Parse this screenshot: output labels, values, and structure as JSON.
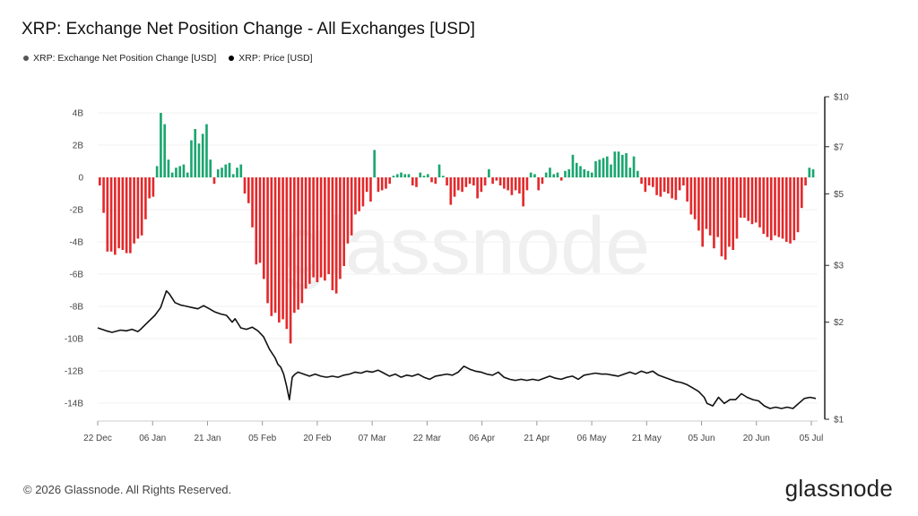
{
  "title": "XRP: Exchange Net Position Change - All Exchanges [USD]",
  "legend": [
    {
      "label": "XRP: Exchange Net Position Change [USD]",
      "color": "#555555"
    },
    {
      "label": "XRP: Price [USD]",
      "color": "#000000"
    }
  ],
  "footer": {
    "copyright": "© 2026 Glassnode. All Rights Reserved.",
    "logo": "glassnode"
  },
  "watermark": "glassnode",
  "colors": {
    "positive": "#1aa66f",
    "negative": "#e3292b",
    "price": "#111111",
    "axis": "#222222"
  },
  "chart_data": {
    "type": "bar",
    "title": "XRP: Exchange Net Position Change - All Exchanges [USD]",
    "x_ticks": [
      "22 Dec",
      "06 Jan",
      "21 Jan",
      "05 Feb",
      "20 Feb",
      "07 Mar",
      "22 Mar",
      "06 Apr",
      "21 Apr",
      "06 May",
      "21 May",
      "05 Jun",
      "20 Jun",
      "05 Jul"
    ],
    "left_axis": {
      "ticks": [
        "4B",
        "2B",
        "0",
        "-2B",
        "-4B",
        "-6B",
        "-8B",
        "-10B",
        "-12B",
        "-14B"
      ],
      "ylim": [
        -14.5,
        4.5
      ]
    },
    "right_axis": {
      "ticks": [
        "$10",
        "$7",
        "$5",
        "$3",
        "$2",
        "$1"
      ],
      "tick_values": [
        10,
        7,
        5,
        3,
        2,
        1
      ],
      "scale": "log",
      "ylim": [
        1,
        10
      ]
    },
    "x_range_days": [
      0,
      196
    ],
    "series": [
      {
        "name": "XRP: Exchange Net Position Change [USD]",
        "unit": "billions USD",
        "values": [
          -0.5,
          -2.2,
          -4.6,
          -4.6,
          -4.8,
          -4.4,
          -4.5,
          -4.7,
          -4.7,
          -4.1,
          -3.8,
          -3.6,
          -2.6,
          -1.3,
          -1.2,
          0.7,
          4.0,
          3.3,
          1.1,
          0.3,
          0.6,
          0.7,
          0.8,
          0.3,
          2.3,
          3.0,
          2.1,
          2.7,
          3.3,
          1.1,
          -0.4,
          0.5,
          0.6,
          0.8,
          0.9,
          0.2,
          0.6,
          0.8,
          -1.0,
          -1.6,
          -3.1,
          -5.4,
          -5.3,
          -6.3,
          -7.8,
          -8.6,
          -8.4,
          -9.0,
          -8.8,
          -9.4,
          -10.3,
          -8.4,
          -8.2,
          -7.8,
          -6.9,
          -6.6,
          -6.2,
          -6.5,
          -6.2,
          -6.4,
          -6.0,
          -7.0,
          -7.2,
          -6.3,
          -5.5,
          -4.1,
          -3.6,
          -2.3,
          -2.1,
          -1.8,
          -0.9,
          -1.5,
          1.7,
          -0.9,
          -0.8,
          -0.7,
          -0.4,
          0.1,
          0.2,
          0.3,
          0.2,
          0.2,
          -0.5,
          -0.6,
          0.3,
          0.1,
          0.2,
          -0.3,
          -0.4,
          0.8,
          0.1,
          -0.5,
          -1.7,
          -1.2,
          -0.8,
          -0.9,
          -0.6,
          -0.4,
          -0.5,
          -1.3,
          -0.9,
          -0.5,
          0.5,
          -0.4,
          -0.2,
          -0.5,
          -0.7,
          -0.8,
          -1.1,
          -0.8,
          -1.0,
          -1.8,
          -0.8,
          0.3,
          0.2,
          -0.8,
          -0.4,
          0.3,
          0.6,
          0.2,
          0.3,
          -0.2,
          0.4,
          0.5,
          1.4,
          0.9,
          0.7,
          0.5,
          0.4,
          0.3,
          1.0,
          1.1,
          1.2,
          1.3,
          0.8,
          1.6,
          1.6,
          1.4,
          1.5,
          0.6,
          1.3,
          0.4,
          -0.4,
          -0.9,
          -0.5,
          -0.6,
          -1.1,
          -1.2,
          -0.9,
          -1.0,
          -1.3,
          -1.4,
          -0.8,
          -0.5,
          -1.5,
          -2.3,
          -2.6,
          -3.3,
          -4.3,
          -3.2,
          -3.6,
          -4.4,
          -3.7,
          -4.9,
          -5.1,
          -4.3,
          -4.5,
          -3.8,
          -2.5,
          -2.5,
          -2.7,
          -2.9,
          -2.8,
          -3.1,
          -3.5,
          -3.7,
          -3.9,
          -3.6,
          -3.7,
          -3.8,
          -4.0,
          -4.1,
          -3.9,
          -3.4,
          -1.9,
          -0.5,
          0.6,
          0.5
        ]
      },
      {
        "name": "XRP: Price [USD]",
        "unit": "USD",
        "points": [
          [
            0,
            1.92
          ],
          [
            3,
            1.88
          ],
          [
            5,
            1.86
          ],
          [
            8,
            1.89
          ],
          [
            10,
            1.88
          ],
          [
            12,
            1.9
          ],
          [
            14,
            1.87
          ],
          [
            15,
            1.9
          ],
          [
            17,
            1.98
          ],
          [
            20,
            2.1
          ],
          [
            22,
            2.22
          ],
          [
            24,
            2.5
          ],
          [
            25,
            2.45
          ],
          [
            27,
            2.3
          ],
          [
            29,
            2.26
          ],
          [
            31,
            2.24
          ],
          [
            33,
            2.22
          ],
          [
            35,
            2.2
          ],
          [
            37,
            2.25
          ],
          [
            39,
            2.2
          ],
          [
            41,
            2.15
          ],
          [
            43,
            2.12
          ],
          [
            45,
            2.1
          ],
          [
            47,
            2.0
          ],
          [
            48,
            2.05
          ],
          [
            50,
            1.92
          ],
          [
            52,
            1.9
          ],
          [
            54,
            1.93
          ],
          [
            56,
            1.88
          ],
          [
            58,
            1.8
          ],
          [
            60,
            1.65
          ],
          [
            62,
            1.55
          ],
          [
            63,
            1.48
          ],
          [
            64,
            1.45
          ],
          [
            65,
            1.38
          ],
          [
            66,
            1.27
          ],
          [
            67,
            1.15
          ],
          [
            68,
            1.35
          ],
          [
            69,
            1.38
          ],
          [
            70,
            1.4
          ],
          [
            72,
            1.38
          ],
          [
            74,
            1.36
          ],
          [
            76,
            1.38
          ],
          [
            78,
            1.36
          ],
          [
            80,
            1.35
          ],
          [
            82,
            1.36
          ],
          [
            84,
            1.35
          ],
          [
            86,
            1.37
          ],
          [
            88,
            1.38
          ],
          [
            90,
            1.4
          ],
          [
            92,
            1.39
          ],
          [
            94,
            1.41
          ],
          [
            96,
            1.4
          ],
          [
            98,
            1.42
          ],
          [
            100,
            1.39
          ],
          [
            102,
            1.36
          ],
          [
            104,
            1.38
          ],
          [
            106,
            1.35
          ],
          [
            108,
            1.37
          ],
          [
            110,
            1.36
          ],
          [
            112,
            1.38
          ],
          [
            114,
            1.35
          ],
          [
            116,
            1.33
          ],
          [
            118,
            1.36
          ],
          [
            120,
            1.37
          ],
          [
            122,
            1.38
          ],
          [
            124,
            1.37
          ],
          [
            126,
            1.4
          ],
          [
            128,
            1.46
          ],
          [
            130,
            1.43
          ],
          [
            132,
            1.41
          ],
          [
            134,
            1.4
          ],
          [
            136,
            1.38
          ],
          [
            138,
            1.37
          ],
          [
            140,
            1.4
          ],
          [
            142,
            1.35
          ],
          [
            144,
            1.33
          ],
          [
            146,
            1.32
          ],
          [
            148,
            1.33
          ],
          [
            150,
            1.32
          ],
          [
            152,
            1.33
          ],
          [
            154,
            1.32
          ],
          [
            156,
            1.34
          ],
          [
            158,
            1.36
          ],
          [
            160,
            1.34
          ],
          [
            162,
            1.33
          ],
          [
            164,
            1.35
          ],
          [
            166,
            1.36
          ],
          [
            168,
            1.33
          ],
          [
            170,
            1.37
          ],
          [
            172,
            1.38
          ],
          [
            174,
            1.39
          ],
          [
            176,
            1.38
          ],
          [
            178,
            1.38
          ],
          [
            180,
            1.37
          ],
          [
            182,
            1.36
          ],
          [
            184,
            1.38
          ],
          [
            186,
            1.4
          ],
          [
            188,
            1.38
          ],
          [
            190,
            1.41
          ],
          [
            192,
            1.39
          ],
          [
            194,
            1.41
          ],
          [
            196,
            1.37
          ],
          [
            198,
            1.35
          ],
          [
            200,
            1.33
          ],
          [
            202,
            1.31
          ],
          [
            204,
            1.3
          ],
          [
            206,
            1.28
          ],
          [
            208,
            1.25
          ],
          [
            210,
            1.22
          ],
          [
            212,
            1.17
          ],
          [
            213,
            1.12
          ],
          [
            215,
            1.1
          ],
          [
            217,
            1.17
          ],
          [
            219,
            1.12
          ],
          [
            221,
            1.15
          ],
          [
            223,
            1.15
          ],
          [
            225,
            1.2
          ],
          [
            227,
            1.17
          ],
          [
            229,
            1.15
          ],
          [
            231,
            1.14
          ],
          [
            233,
            1.1
          ],
          [
            235,
            1.08
          ],
          [
            237,
            1.09
          ],
          [
            239,
            1.08
          ],
          [
            241,
            1.09
          ],
          [
            243,
            1.08
          ],
          [
            245,
            1.12
          ],
          [
            247,
            1.16
          ],
          [
            249,
            1.17
          ],
          [
            251,
            1.16
          ]
        ],
        "x_max": 251
      }
    ]
  }
}
